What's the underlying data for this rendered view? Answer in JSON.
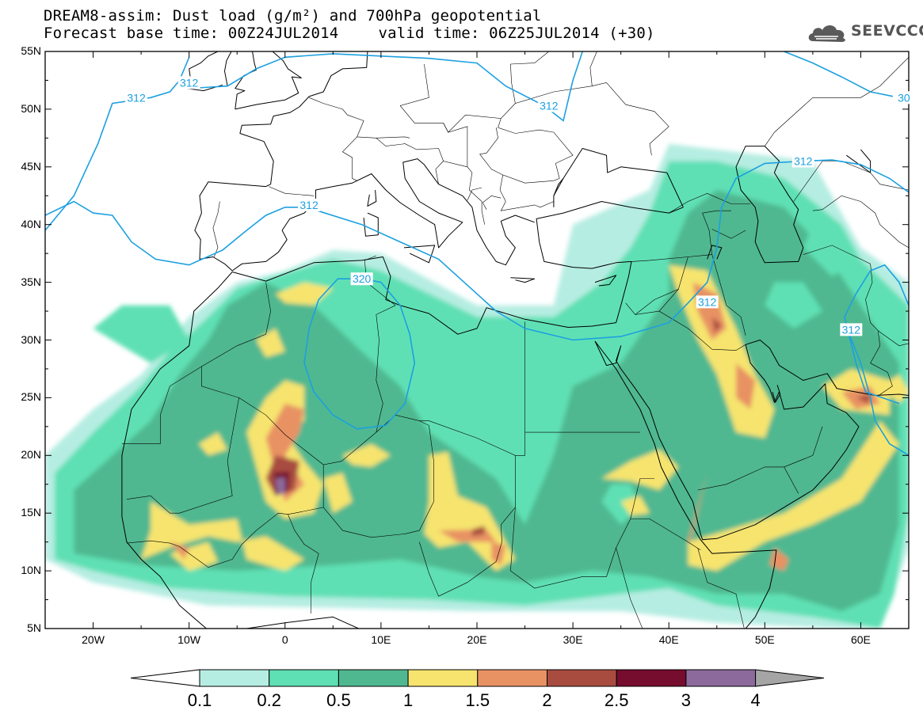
{
  "title": {
    "line1": "DREAM8-assim: Dust load (g/m²) and 700hPa geopotential",
    "base_time": "Forecast base time: 00Z24JUL2014",
    "valid_time": "valid time: 06Z25JUL2014 (+30)"
  },
  "logo": {
    "text": "SEEVCCC",
    "icon": "cloud-icon"
  },
  "chart_data": {
    "type": "heatmap",
    "lat_labels": [
      "55N",
      "50N",
      "45N",
      "40N",
      "35N",
      "30N",
      "25N",
      "20N",
      "15N",
      "10N",
      "5N"
    ],
    "lon_labels": [
      "20W",
      "10W",
      "0",
      "10E",
      "20E",
      "30E",
      "40E",
      "50E",
      "60E"
    ],
    "lat_range": [
      5,
      55
    ],
    "lon_range": [
      -25,
      65
    ],
    "contour_labels": [
      {
        "text": "312",
        "lon": -15.5,
        "lat": 51
      },
      {
        "text": "312",
        "lon": -10,
        "lat": 52.3
      },
      {
        "text": "312",
        "lon": 27.5,
        "lat": 50.3
      },
      {
        "text": "30",
        "lon": 64.5,
        "lat": 51
      },
      {
        "text": "312",
        "lon": 2.5,
        "lat": 41.7
      },
      {
        "text": "312",
        "lon": 54,
        "lat": 45.5
      },
      {
        "text": "320",
        "lon": 8,
        "lat": 35.3
      },
      {
        "text": "312",
        "lon": 44,
        "lat": 33.3
      },
      {
        "text": "312",
        "lon": 59,
        "lat": 30.9
      }
    ],
    "colorbar": {
      "levels": [
        "0.1",
        "0.2",
        "0.5",
        "1",
        "1.5",
        "2",
        "2.5",
        "3",
        "4"
      ],
      "colors": [
        "#ffffff",
        "#b6ede2",
        "#5fe0b4",
        "#50b890",
        "#f6e46e",
        "#e89264",
        "#a84c40",
        "#760c2e",
        "#8c6a9c",
        "#a5a5a5"
      ]
    },
    "dust_colors": {
      "c1": "#b6ede2",
      "c2": "#5fe0b4",
      "c3": "#50b890",
      "c4": "#f6e46e",
      "c5": "#e89264",
      "c6": "#a84c40",
      "c7": "#760c2e",
      "c8": "#8c6a9c"
    },
    "contour_color": "#1ca0e0"
  }
}
